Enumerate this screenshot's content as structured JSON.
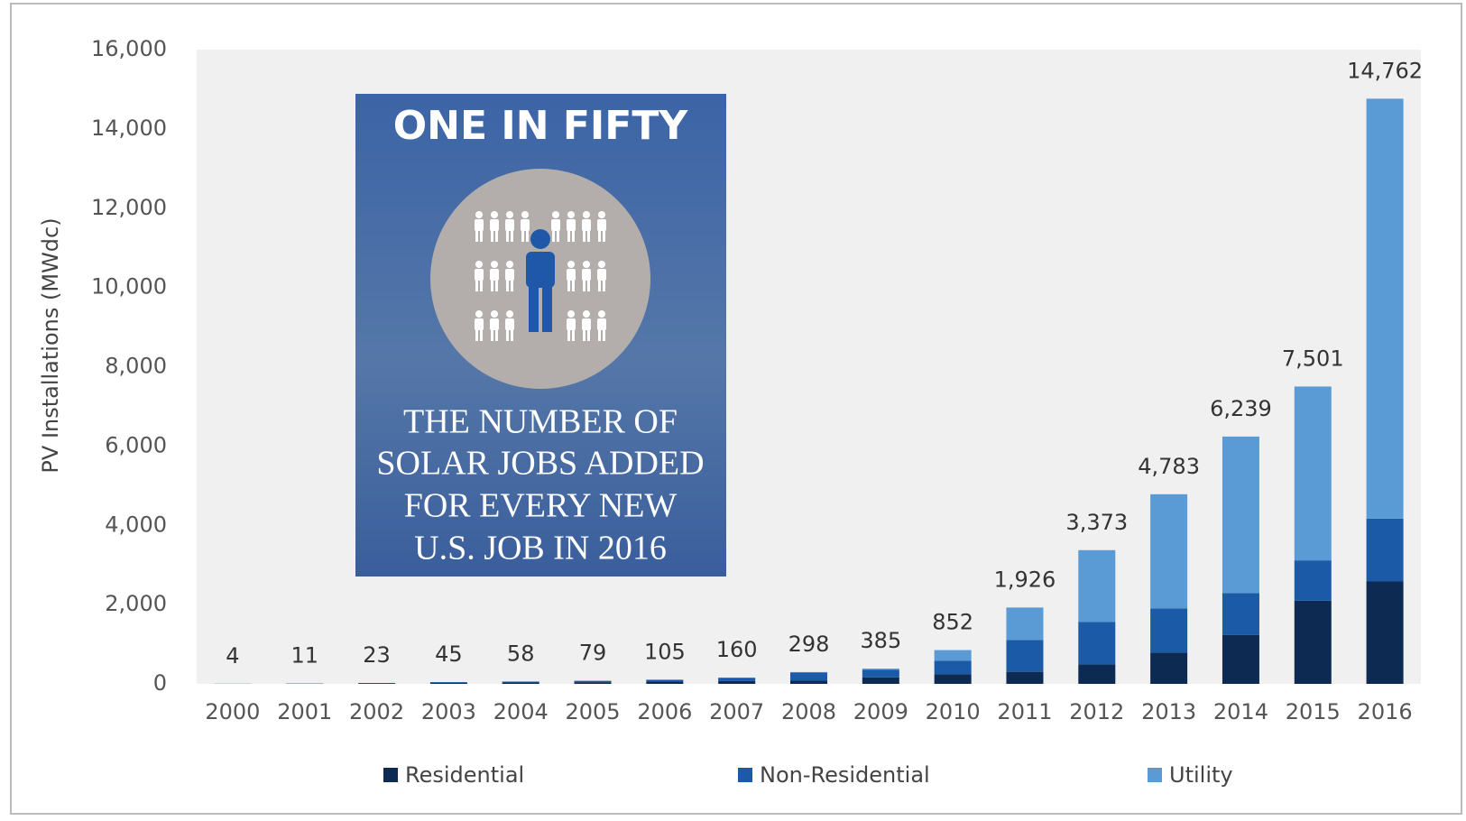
{
  "chart_data": {
    "type": "stacked-bar",
    "y_label": "PV Installations (MWdc)",
    "categories": [
      "2000",
      "2001",
      "2002",
      "2003",
      "2004",
      "2005",
      "2006",
      "2007",
      "2008",
      "2009",
      "2010",
      "2011",
      "2012",
      "2013",
      "2014",
      "2015",
      "2016"
    ],
    "series": [
      {
        "name": "Residential",
        "color": "#0d2b52",
        "values": [
          2,
          6,
          11,
          22,
          35,
          42,
          56,
          70,
          81,
          164,
          246,
          304,
          488,
          792,
          1231,
          2099,
          2583
        ]
      },
      {
        "name": "Non-Residential",
        "color": "#1a5aa6",
        "values": [
          2,
          5,
          11,
          22,
          22,
          35,
          46,
          80,
          208,
          191,
          336,
          803,
          1072,
          1112,
          1059,
          1016,
          1586
        ]
      },
      {
        "name": "Utility",
        "color": "#5b9bd5",
        "values": [
          0,
          0,
          1,
          1,
          1,
          2,
          3,
          10,
          9,
          30,
          270,
          819,
          1813,
          2879,
          3949,
          4386,
          10593
        ]
      }
    ],
    "totals": {
      "values": [
        4,
        11,
        23,
        45,
        58,
        79,
        105,
        160,
        298,
        385,
        852,
        1926,
        3373,
        4783,
        6239,
        7501,
        14762
      ],
      "value_labels": [
        "4",
        "11",
        "23",
        "45",
        "58",
        "79",
        "105",
        "160",
        "298",
        "385",
        "852",
        "1,926",
        "3,373",
        "4,783",
        "6,239",
        "7,501",
        "14,762"
      ]
    },
    "ylim": [
      0,
      16000
    ],
    "yticks": [
      0,
      {
        "value": 2000,
        "label": "2,000"
      },
      {
        "value": 4000,
        "label": "4,000"
      },
      {
        "value": 6000,
        "label": "6,000"
      },
      {
        "value": 8000,
        "label": "8,000"
      },
      {
        "value": 10000,
        "label": "10,000"
      },
      {
        "value": 12000,
        "label": "12,000"
      },
      {
        "value": 14000,
        "label": "14,000"
      },
      {
        "value": 16000,
        "label": "16,000"
      }
    ],
    "grid": false,
    "legend": "bottom"
  },
  "infographic": {
    "title": "ONE IN FIFTY",
    "lines": [
      "THE NUMBER OF",
      "SOLAR JOBS ADDED",
      "FOR EVERY NEW",
      "U.S. JOB IN 2016"
    ]
  }
}
